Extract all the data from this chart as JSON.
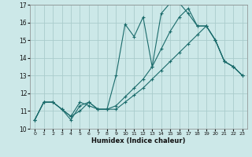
{
  "xlabel": "Humidex (Indice chaleur)",
  "bg_color": "#cce8e8",
  "grid_color": "#aacccc",
  "line_color": "#1a6b6b",
  "xlim": [
    -0.5,
    23.5
  ],
  "ylim": [
    10,
    17
  ],
  "xticks": [
    0,
    1,
    2,
    3,
    4,
    5,
    6,
    7,
    8,
    9,
    10,
    11,
    12,
    13,
    14,
    15,
    16,
    17,
    18,
    19,
    20,
    21,
    22,
    23
  ],
  "yticks": [
    10,
    11,
    12,
    13,
    14,
    15,
    16,
    17
  ],
  "line1_x": [
    0,
    1,
    2,
    3,
    4,
    5,
    6,
    7,
    8,
    9,
    10,
    11,
    12,
    13,
    14,
    15,
    16,
    17,
    18,
    19,
    20,
    21,
    22,
    23
  ],
  "line1_y": [
    10.5,
    11.5,
    11.5,
    11.1,
    10.5,
    11.3,
    11.5,
    11.1,
    11.1,
    13.0,
    15.9,
    15.2,
    16.3,
    13.5,
    16.5,
    17.1,
    17.1,
    16.5,
    15.8,
    15.8,
    15.0,
    13.8,
    13.5,
    13.0
  ],
  "line2_x": [
    0,
    1,
    2,
    3,
    4,
    5,
    6,
    7,
    8,
    9,
    10,
    11,
    12,
    13,
    14,
    15,
    16,
    17,
    18,
    19,
    20,
    21,
    22,
    23
  ],
  "line2_y": [
    10.5,
    11.5,
    11.5,
    11.1,
    10.7,
    11.5,
    11.3,
    11.1,
    11.1,
    11.3,
    11.8,
    12.3,
    12.8,
    13.5,
    14.5,
    15.5,
    16.3,
    16.8,
    15.8,
    15.8,
    15.0,
    13.8,
    13.5,
    13.0
  ],
  "line3_x": [
    0,
    1,
    2,
    3,
    4,
    5,
    6,
    7,
    8,
    9,
    10,
    11,
    12,
    13,
    14,
    15,
    16,
    17,
    18,
    19,
    20,
    21,
    22,
    23
  ],
  "line3_y": [
    10.5,
    11.5,
    11.5,
    11.1,
    10.7,
    11.0,
    11.5,
    11.1,
    11.1,
    11.1,
    11.5,
    11.9,
    12.3,
    12.8,
    13.3,
    13.8,
    14.3,
    14.8,
    15.3,
    15.8,
    15.0,
    13.8,
    13.5,
    13.0
  ]
}
